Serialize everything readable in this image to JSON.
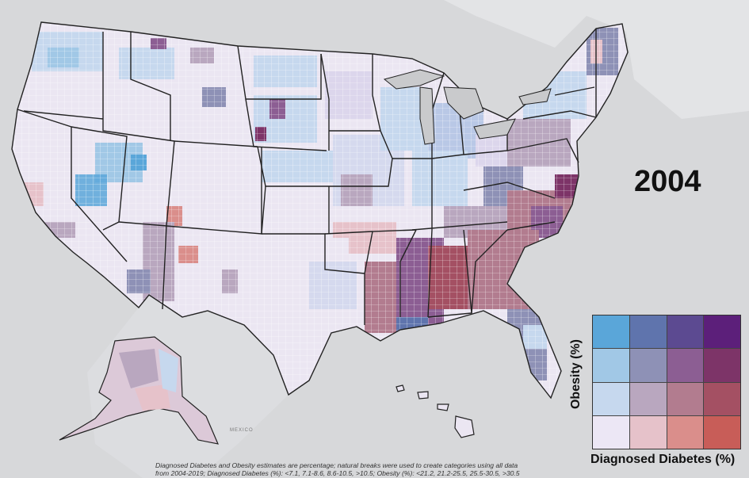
{
  "map": {
    "year": "2004",
    "mexico_label": "MEXICO",
    "legend": {
      "y_title": "Obesity (%)",
      "x_title": "Diagnosed Diabetes (%)",
      "colors": [
        [
          "#5aa6d9",
          "#5f74ad",
          "#5c4a91",
          "#5c1f7a"
        ],
        [
          "#a1c8e6",
          "#8e91b6",
          "#8c5e93",
          "#7d3468"
        ],
        [
          "#c6d8ee",
          "#b9a7bf",
          "#b27c8f",
          "#a45063"
        ],
        [
          "#ece7f5",
          "#e6c2ca",
          "#da8e8b",
          "#c85d58"
        ]
      ]
    },
    "footnote": {
      "line1": "Diagnosed Diabetes and Obesity estimates are percentage; natural breaks were used to create categories using all data",
      "line2": "from 2004-2019; Diagnosed Diabetes (%): <7.1, 7.1-8.6, 8.6-10.5, >10.5; Obesity (%): <21.2, 21.2-25.5, 25.5-30.5, >30.5"
    },
    "colors": {
      "background": "#d7d8da",
      "land_base": "#ebe6f2",
      "border": "#222222",
      "water": "#c9cacc"
    }
  }
}
